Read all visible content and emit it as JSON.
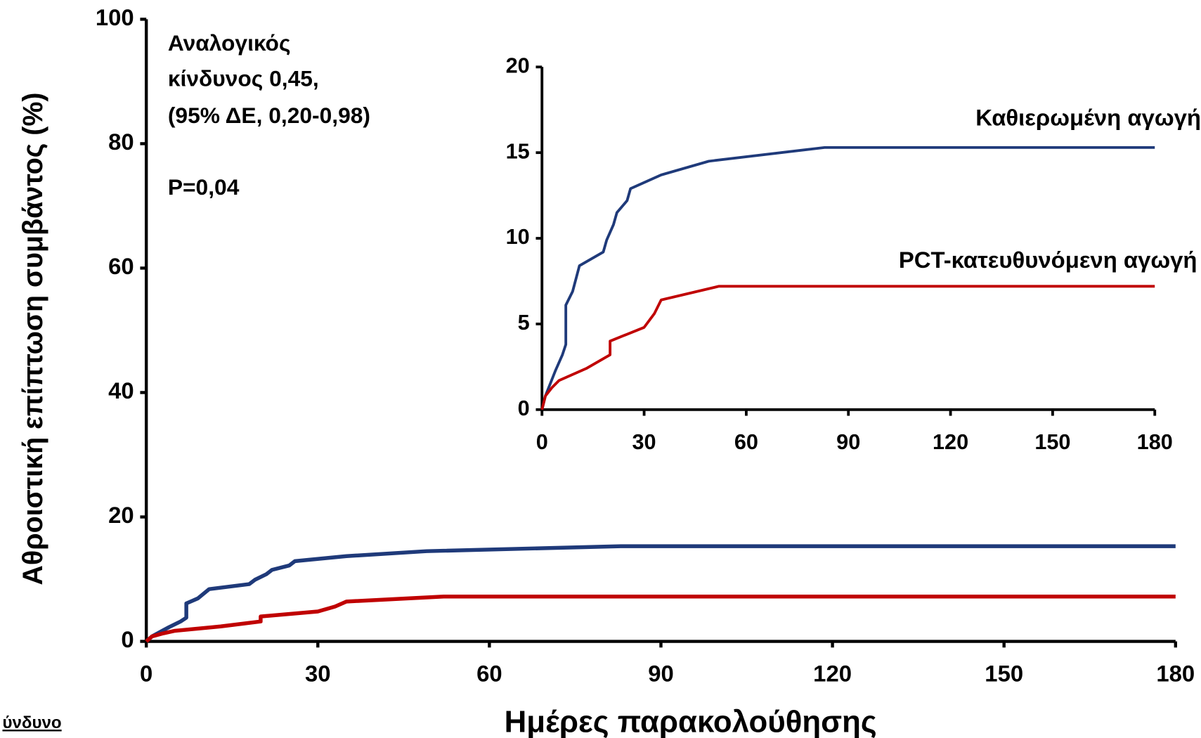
{
  "chart_data": [
    {
      "type": "line",
      "ylabel": "Αθροιστική επίπτωση συμβάντος (%)",
      "xlabel": "Ημέρες παρακολούθησης",
      "annotations": [
        "Αναλογικός",
        "κίνδυνος 0,45,",
        "(95% ΔΕ, 0,20-0,98)",
        "P=0,04",
        "ύνδυνο"
      ],
      "xlim": [
        0,
        180
      ],
      "xticks": [
        0,
        30,
        60,
        90,
        120,
        150,
        180
      ],
      "ylim": [
        0,
        100
      ],
      "yticks": [
        0,
        20,
        40,
        60,
        80,
        100
      ],
      "series": [
        {
          "color": "#1f3a7a",
          "x": [
            0,
            1,
            3,
            4,
            6,
            7,
            7,
            8,
            9,
            11,
            18,
            19,
            21,
            22,
            25,
            26,
            35,
            49,
            83,
            180
          ],
          "values": [
            0,
            0.8,
            1.8,
            2.3,
            3.2,
            3.8,
            6.1,
            6.5,
            6.9,
            8.4,
            9.2,
            9.9,
            10.8,
            11.5,
            12.2,
            12.9,
            13.7,
            14.5,
            15.3,
            15.3
          ]
        },
        {
          "color": "#c00000",
          "x": [
            0,
            1,
            3,
            5,
            13,
            20,
            20,
            30,
            33,
            35,
            52,
            180
          ],
          "values": [
            0,
            0.8,
            1.3,
            1.7,
            2.4,
            3.2,
            4.0,
            4.8,
            5.6,
            6.4,
            7.2,
            7.2
          ]
        }
      ]
    },
    {
      "type": "line",
      "xlim": [
        0,
        180
      ],
      "xticks": [
        0,
        30,
        60,
        90,
        120,
        150,
        180
      ],
      "ylim": [
        0,
        20
      ],
      "yticks": [
        0,
        5,
        10,
        15,
        20
      ],
      "series": [
        {
          "name": "Καθιερωμένη αγωγή",
          "color": "#1f3a7a",
          "x": [
            0,
            1,
            3,
            4,
            6,
            7,
            7,
            8,
            9,
            11,
            18,
            19,
            21,
            22,
            25,
            26,
            35,
            49,
            83,
            180
          ],
          "values": [
            0,
            0.8,
            1.8,
            2.3,
            3.2,
            3.8,
            6.1,
            6.5,
            6.9,
            8.4,
            9.2,
            9.9,
            10.8,
            11.5,
            12.2,
            12.9,
            13.7,
            14.5,
            15.3,
            15.3
          ]
        },
        {
          "name": "PCT-κατευθυνόμενη αγωγή",
          "color": "#c00000",
          "x": [
            0,
            1,
            3,
            5,
            13,
            20,
            20,
            30,
            33,
            35,
            52,
            180
          ],
          "values": [
            0,
            0.8,
            1.3,
            1.7,
            2.4,
            3.2,
            4.0,
            4.8,
            5.6,
            6.4,
            7.2,
            7.2
          ]
        }
      ]
    }
  ]
}
